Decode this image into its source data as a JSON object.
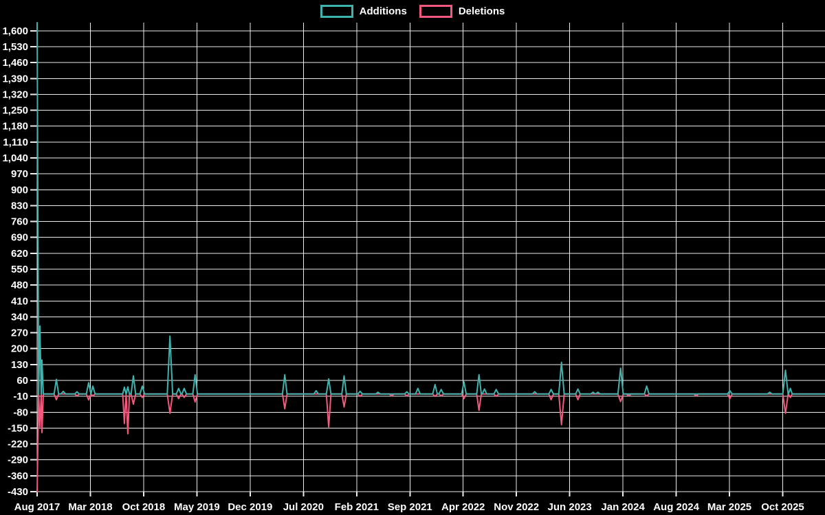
{
  "page": {
    "background": "#000000"
  },
  "colors": {
    "background": "#000000",
    "grid": "#ededed",
    "text": "#ffffff",
    "additions": "#3fb3ae",
    "deletions": "#f4587c"
  },
  "legend": {
    "items": [
      {
        "label": "Additions",
        "color": "#3fb3ae"
      },
      {
        "label": "Deletions",
        "color": "#f4587c"
      }
    ]
  },
  "chart_data": {
    "type": "line",
    "title": "",
    "xlabel": "",
    "ylabel": "",
    "grid": true,
    "legend_position": "top-center",
    "baseline_value": 0,
    "x_axis": {
      "tick_labels": [
        "Aug 2017",
        "Mar 2018",
        "Oct 2018",
        "May 2019",
        "Dec 2019",
        "Jul 2020",
        "Feb 2021",
        "Sep 2021",
        "Apr 2022",
        "Nov 2022",
        "Jun 2023",
        "Jan 2024",
        "Aug 2024",
        "Mar 2025",
        "Oct 2025"
      ],
      "tick_interval_months": 7,
      "xlim_months": [
        0,
        103.5
      ]
    },
    "y_axis": {
      "min_tick": -430,
      "max_tick": 1600,
      "tick_step": 70,
      "ylim": [
        -430,
        1636
      ]
    },
    "series_names": [
      "Additions",
      "Deletions"
    ],
    "events": [
      {
        "m": 0.0,
        "date": "2017-08",
        "additions": 1636,
        "deletions": -430,
        "w": 0.2
      },
      {
        "m": 0.36,
        "date": "2017-08",
        "additions": 300,
        "deletions": -145,
        "w": 0.18
      },
      {
        "m": 0.63,
        "date": "2017-08",
        "additions": 150,
        "deletions": -170,
        "w": 0.18
      },
      {
        "m": 2.53,
        "date": "2017-10",
        "additions": 65,
        "deletions": -25
      },
      {
        "m": 3.43,
        "date": "2017-11",
        "additions": 12,
        "deletions": 0
      },
      {
        "m": 5.24,
        "date": "2018-01",
        "additions": 10,
        "deletions": -8
      },
      {
        "m": 6.77,
        "date": "2018-02",
        "additions": 50,
        "deletions": -26
      },
      {
        "m": 7.32,
        "date": "2018-03",
        "additions": 35,
        "deletions": -8
      },
      {
        "m": 11.47,
        "date": "2018-07",
        "additions": 30,
        "deletions": -130,
        "w": 0.22
      },
      {
        "m": 11.92,
        "date": "2018-07",
        "additions": 32,
        "deletions": -175,
        "w": 0.22
      },
      {
        "m": 12.65,
        "date": "2018-08",
        "additions": 80,
        "deletions": -45
      },
      {
        "m": 13.82,
        "date": "2018-09",
        "additions": 35,
        "deletions": -15
      },
      {
        "m": 17.46,
        "date": "2019-01",
        "additions": 255,
        "deletions": -85,
        "w": 0.35
      },
      {
        "m": 18.6,
        "date": "2019-02",
        "additions": 25,
        "deletions": -20
      },
      {
        "m": 19.33,
        "date": "2019-03",
        "additions": 25,
        "deletions": -15
      },
      {
        "m": 20.77,
        "date": "2019-04",
        "additions": 85,
        "deletions": -35
      },
      {
        "m": 32.55,
        "date": "2020-04",
        "additions": 85,
        "deletions": -65
      },
      {
        "m": 36.67,
        "date": "2020-08",
        "additions": 15,
        "deletions": 0
      },
      {
        "m": 38.32,
        "date": "2020-10",
        "additions": 67,
        "deletions": -145
      },
      {
        "m": 40.35,
        "date": "2020-12",
        "additions": 80,
        "deletions": -57
      },
      {
        "m": 42.45,
        "date": "2021-02",
        "additions": 12,
        "deletions": -10
      },
      {
        "m": 44.8,
        "date": "2021-04",
        "additions": 8,
        "deletions": 0
      },
      {
        "m": 46.6,
        "date": "2021-06",
        "additions": 0,
        "deletions": -8
      },
      {
        "m": 48.6,
        "date": "2021-08",
        "additions": 10,
        "deletions": -8
      },
      {
        "m": 50.04,
        "date": "2021-10",
        "additions": 25,
        "deletions": 0
      },
      {
        "m": 52.3,
        "date": "2021-12",
        "additions": 42,
        "deletions": -10
      },
      {
        "m": 53.11,
        "date": "2022-01",
        "additions": 20,
        "deletions": -8
      },
      {
        "m": 56.1,
        "date": "2022-04",
        "additions": 54,
        "deletions": -20
      },
      {
        "m": 58.08,
        "date": "2022-06",
        "additions": 85,
        "deletions": -72
      },
      {
        "m": 58.8,
        "date": "2022-06",
        "additions": 22,
        "deletions": 0
      },
      {
        "m": 60.34,
        "date": "2022-08",
        "additions": 20,
        "deletions": -10
      },
      {
        "m": 65.4,
        "date": "2023-01",
        "additions": 10,
        "deletions": 0
      },
      {
        "m": 67.56,
        "date": "2023-03",
        "additions": 20,
        "deletions": -25
      },
      {
        "m": 68.92,
        "date": "2023-04",
        "additions": 140,
        "deletions": -135,
        "w": 0.35
      },
      {
        "m": 71.08,
        "date": "2023-07",
        "additions": 22,
        "deletions": -25
      },
      {
        "m": 73.07,
        "date": "2023-09",
        "additions": 8,
        "deletions": 0
      },
      {
        "m": 73.7,
        "date": "2023-09",
        "additions": 8,
        "deletions": 0
      },
      {
        "m": 76.69,
        "date": "2023-12",
        "additions": 114,
        "deletions": -33,
        "w": 0.35
      },
      {
        "m": 77.77,
        "date": "2024-01",
        "additions": 0,
        "deletions": -8
      },
      {
        "m": 80.12,
        "date": "2024-04",
        "additions": 35,
        "deletions": -8
      },
      {
        "m": 86.62,
        "date": "2024-10",
        "additions": 0,
        "deletions": -8
      },
      {
        "m": 91.05,
        "date": "2025-03",
        "additions": 15,
        "deletions": -20
      },
      {
        "m": 96.29,
        "date": "2025-08",
        "additions": 8,
        "deletions": 0
      },
      {
        "m": 98.36,
        "date": "2025-10",
        "additions": 105,
        "deletions": -85,
        "w": 0.35
      },
      {
        "m": 99.0,
        "date": "2025-11",
        "additions": 25,
        "deletions": -15,
        "w": 0.25
      }
    ]
  }
}
